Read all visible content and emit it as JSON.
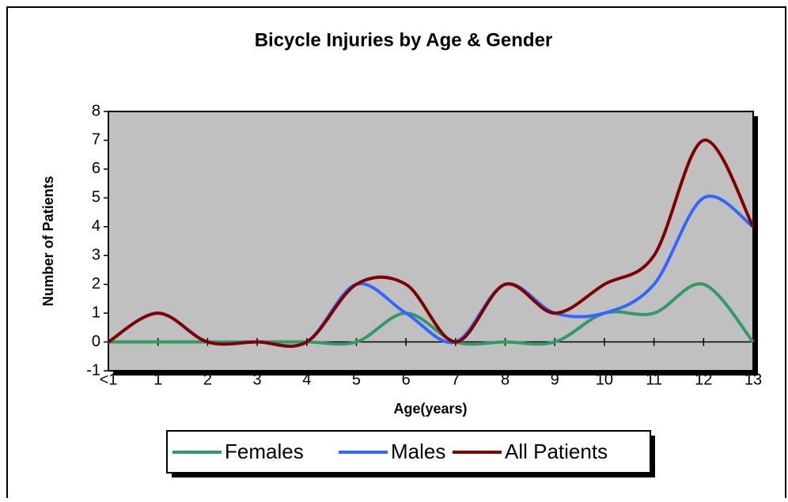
{
  "chart_data": {
    "type": "line",
    "title": "Bicycle Injuries by Age & Gender",
    "x_label": "Age(years)",
    "y_label": "Number of Patients",
    "categories": [
      "<1",
      "1",
      "2",
      "3",
      "4",
      "5",
      "6",
      "7",
      "8",
      "9",
      "10",
      "11",
      "12",
      "13"
    ],
    "series": [
      {
        "name": "Females",
        "color": "#339966",
        "values": [
          0,
          0,
          0,
          0,
          0,
          0,
          1,
          0,
          0,
          0,
          1,
          1,
          2,
          0
        ]
      },
      {
        "name": "Males",
        "color": "#3366ff",
        "values": [
          0,
          1,
          0,
          0,
          0,
          2,
          1,
          0,
          2,
          1,
          1,
          2,
          5,
          4
        ]
      },
      {
        "name": "All Patients",
        "color": "#800000",
        "values": [
          0,
          1,
          0,
          0,
          0,
          2,
          2,
          0,
          2,
          1,
          2,
          3,
          7,
          4
        ]
      }
    ],
    "ylim": [
      -1,
      8
    ],
    "yticks": [
      -1,
      0,
      1,
      2,
      3,
      4,
      5,
      6,
      7,
      8
    ],
    "smooth": true,
    "legend": "bottom"
  }
}
